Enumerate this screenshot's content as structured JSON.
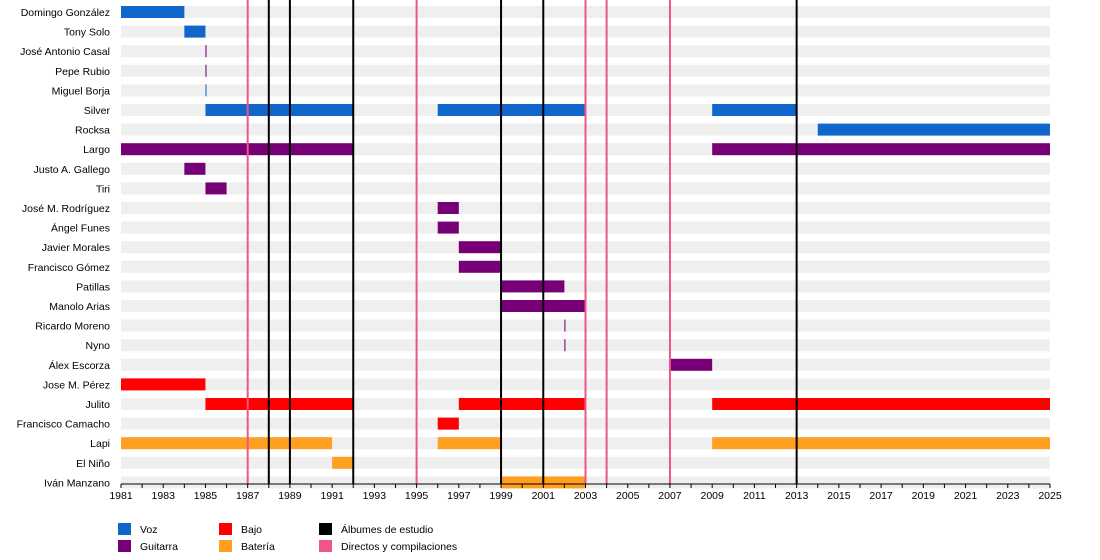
{
  "chart_data": {
    "type": "timeline",
    "x_range": [
      1981,
      2025
    ],
    "x_ticks": [
      1981,
      1983,
      1985,
      1987,
      1989,
      1991,
      1993,
      1995,
      1997,
      1999,
      2001,
      2003,
      2005,
      2007,
      2009,
      2011,
      2013,
      2015,
      2017,
      2019,
      2021,
      2023,
      2025
    ],
    "roles": [
      {
        "key": "voz",
        "name": "Voz",
        "color": "#1166cc"
      },
      {
        "key": "guitarra",
        "name": "Guitarra",
        "color": "#770077"
      },
      {
        "key": "bajo",
        "name": "Bajo",
        "color": "#ff0000"
      },
      {
        "key": "bateria",
        "name": "Batería",
        "color": "#ffa020"
      }
    ],
    "markers": [
      {
        "key": "estudio",
        "name": "Álbumes de estudio",
        "color": "#000000",
        "years": [
          1988,
          1989,
          1992,
          1999,
          2001,
          2013
        ]
      },
      {
        "key": "directos",
        "name": "Directos y compilaciones",
        "color": "#ee5588",
        "years": [
          1987,
          1995,
          2003,
          2004,
          2007
        ]
      }
    ],
    "members": [
      {
        "name": "Domingo González",
        "periods": [
          {
            "role": "voz",
            "start": 1981,
            "end": 1984
          }
        ]
      },
      {
        "name": "Tony Solo",
        "periods": [
          {
            "role": "voz",
            "start": 1984,
            "end": 1985
          }
        ]
      },
      {
        "name": "José Antonio Casal",
        "periods": [
          {
            "role": "guitarra",
            "start": 1985,
            "end": 1985.05
          }
        ]
      },
      {
        "name": "Pepe Rubio",
        "periods": [
          {
            "role": "guitarra",
            "start": 1985,
            "end": 1985.05
          }
        ]
      },
      {
        "name": "Miguel Borja",
        "periods": [
          {
            "role": "voz",
            "start": 1985,
            "end": 1985.05
          }
        ]
      },
      {
        "name": "Silver",
        "periods": [
          {
            "role": "voz",
            "start": 1985,
            "end": 1992
          },
          {
            "role": "voz",
            "start": 1996,
            "end": 2003
          },
          {
            "role": "voz",
            "start": 2007,
            "end": 2007.05
          },
          {
            "role": "voz",
            "start": 2009,
            "end": 2013
          }
        ]
      },
      {
        "name": "Rocksa",
        "periods": [
          {
            "role": "voz",
            "start": 2014,
            "end": 2025
          }
        ]
      },
      {
        "name": "Largo",
        "periods": [
          {
            "role": "guitarra",
            "start": 1981,
            "end": 1992
          },
          {
            "role": "guitarra",
            "start": 2009,
            "end": 2025
          }
        ]
      },
      {
        "name": "Justo A. Gallego",
        "periods": [
          {
            "role": "guitarra",
            "start": 1984,
            "end": 1985
          }
        ]
      },
      {
        "name": "Tiri",
        "periods": [
          {
            "role": "guitarra",
            "start": 1985,
            "end": 1986
          }
        ]
      },
      {
        "name": "José M. Rodríguez",
        "periods": [
          {
            "role": "guitarra",
            "start": 1996,
            "end": 1997
          }
        ]
      },
      {
        "name": "Ángel Funes",
        "periods": [
          {
            "role": "guitarra",
            "start": 1996,
            "end": 1997
          }
        ]
      },
      {
        "name": "Javier Morales",
        "periods": [
          {
            "role": "guitarra",
            "start": 1997,
            "end": 1999
          }
        ]
      },
      {
        "name": "Francisco Gómez",
        "periods": [
          {
            "role": "guitarra",
            "start": 1997,
            "end": 1999
          }
        ]
      },
      {
        "name": "Patillas",
        "periods": [
          {
            "role": "guitarra",
            "start": 1999,
            "end": 2002
          }
        ]
      },
      {
        "name": "Manolo Arias",
        "periods": [
          {
            "role": "guitarra",
            "start": 1999,
            "end": 2003
          }
        ]
      },
      {
        "name": "Ricardo Moreno",
        "periods": [
          {
            "role": "guitarra",
            "start": 2002,
            "end": 2002.05
          }
        ]
      },
      {
        "name": "Nyno",
        "periods": [
          {
            "role": "guitarra",
            "start": 2002,
            "end": 2002.05
          }
        ]
      },
      {
        "name": "Álex Escorza",
        "periods": [
          {
            "role": "guitarra",
            "start": 2007,
            "end": 2009
          }
        ]
      },
      {
        "name": "Jose M. Pérez",
        "periods": [
          {
            "role": "bajo",
            "start": 1981,
            "end": 1985
          }
        ]
      },
      {
        "name": "Julito",
        "periods": [
          {
            "role": "bajo",
            "start": 1985,
            "end": 1992
          },
          {
            "role": "bajo",
            "start": 1997,
            "end": 2003
          },
          {
            "role": "bajo",
            "start": 2007,
            "end": 2007.05
          },
          {
            "role": "bajo",
            "start": 2009,
            "end": 2025
          }
        ]
      },
      {
        "name": "Francisco Camacho",
        "periods": [
          {
            "role": "bajo",
            "start": 1996,
            "end": 1997
          }
        ]
      },
      {
        "name": "Lapi",
        "periods": [
          {
            "role": "bateria",
            "start": 1981,
            "end": 1991
          },
          {
            "role": "bateria",
            "start": 1996,
            "end": 1999
          },
          {
            "role": "bateria",
            "start": 2007,
            "end": 2007.05
          },
          {
            "role": "bateria",
            "start": 2009,
            "end": 2025
          }
        ]
      },
      {
        "name": "El Niño",
        "periods": [
          {
            "role": "bateria",
            "start": 1991,
            "end": 1992
          }
        ]
      },
      {
        "name": "Iván Manzano",
        "periods": [
          {
            "role": "bateria",
            "start": 1999,
            "end": 2003
          }
        ]
      }
    ]
  }
}
